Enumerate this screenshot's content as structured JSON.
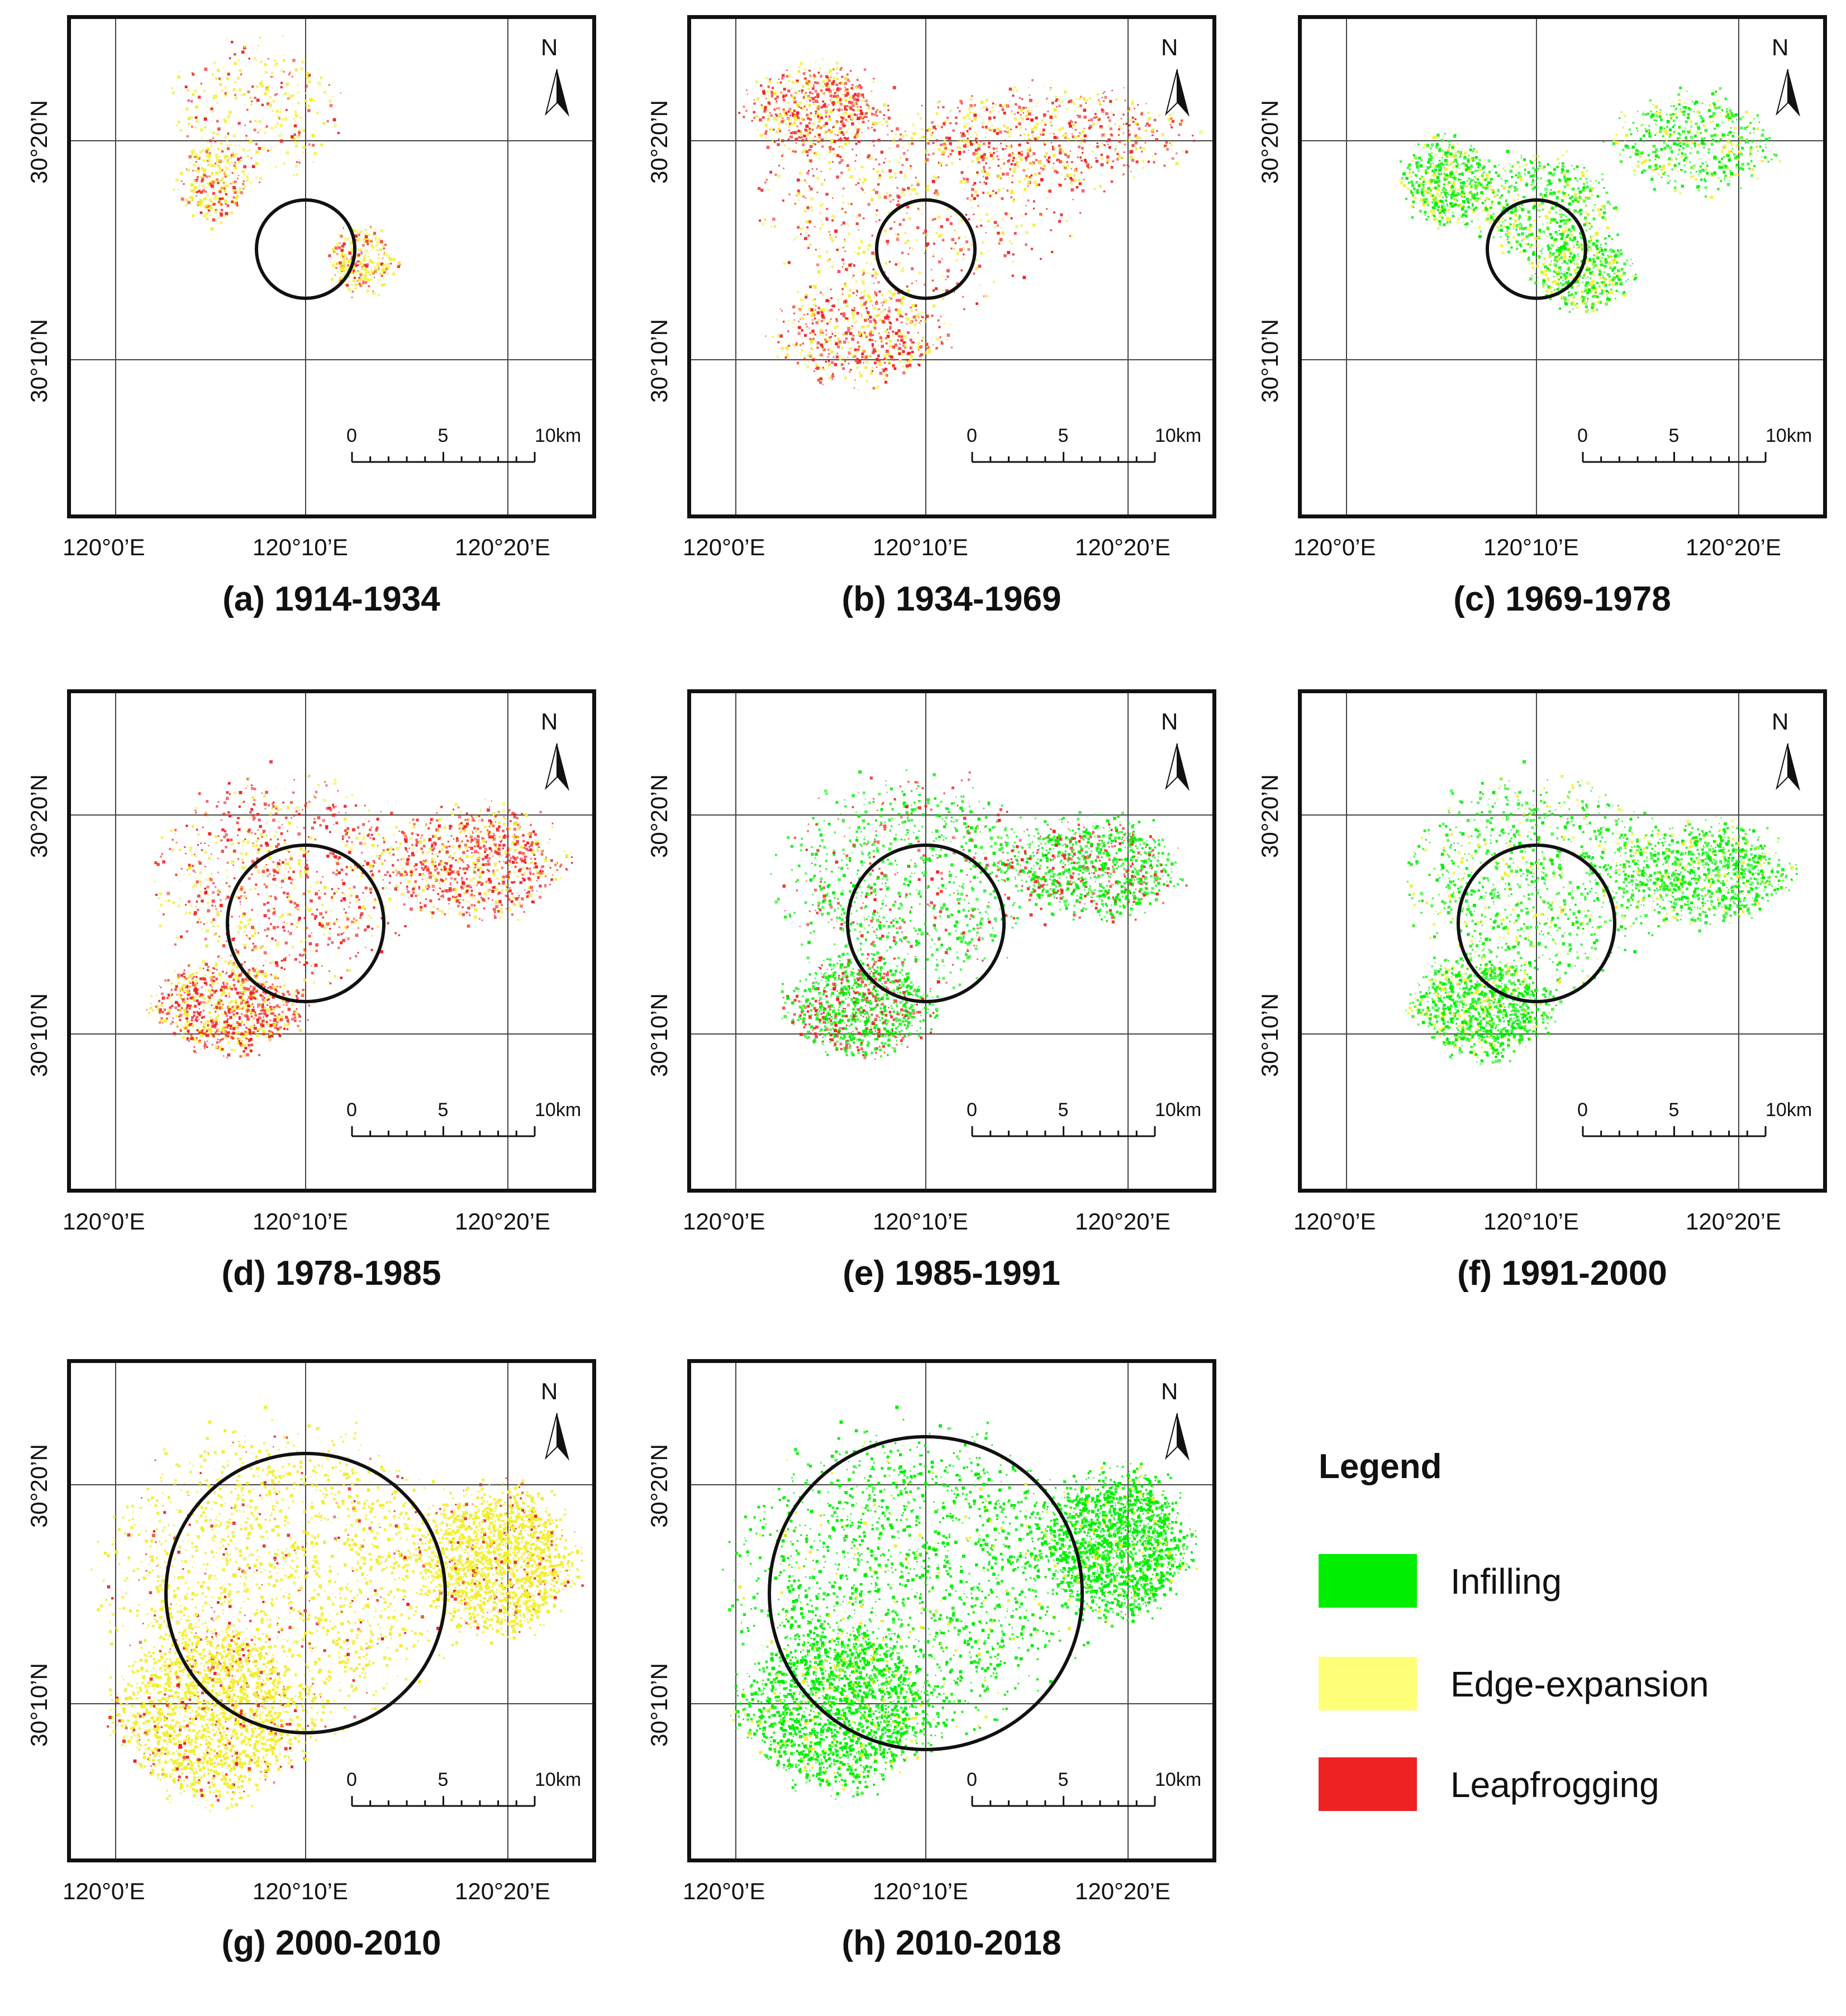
{
  "panels": [
    {
      "id": "a",
      "caption": "(a) 1914-1934",
      "dominant": "leapfrogging",
      "secondary": "edge-expansion",
      "circle_radius_km": 2.5
    },
    {
      "id": "b",
      "caption": "(b) 1934-1969",
      "dominant": "leapfrogging",
      "secondary": "edge-expansion",
      "circle_radius_km": 2.5
    },
    {
      "id": "c",
      "caption": "(c) 1969-1978",
      "dominant": "infilling",
      "secondary": "edge-expansion",
      "circle_radius_km": 2.5
    },
    {
      "id": "d",
      "caption": "(d) 1978-1985",
      "dominant": "leapfrogging",
      "secondary": "edge-expansion",
      "circle_radius_km": 4
    },
    {
      "id": "e",
      "caption": "(e) 1985-1991",
      "dominant": "infilling",
      "secondary": "leapfrogging",
      "circle_radius_km": 4
    },
    {
      "id": "f",
      "caption": "(f) 1991-2000",
      "dominant": "infilling",
      "secondary": "edge-expansion",
      "circle_radius_km": 4
    },
    {
      "id": "g",
      "caption": "(g) 2000-2010",
      "dominant": "edge-expansion",
      "secondary": "leapfrogging",
      "circle_radius_km": 7
    },
    {
      "id": "h",
      "caption": "(h) 2010-2018",
      "dominant": "infilling",
      "secondary": "edge-expansion",
      "circle_radius_km": 7
    }
  ],
  "axes": {
    "lon_labels": [
      "120°0’E",
      "120°10’E",
      "120°20’E"
    ],
    "lat_labels": [
      "30°20’N",
      "30°10’N"
    ]
  },
  "north_arrow": {
    "label": "N"
  },
  "scale_bar": {
    "labels": [
      "0",
      "5",
      "10km"
    ]
  },
  "legend": {
    "title": "Legend",
    "items": [
      {
        "label": "Infilling",
        "color": "#00ee00"
      },
      {
        "label": "Edge-expansion",
        "color": "#ffff77"
      },
      {
        "label": "Leapfrogging",
        "color": "#ee2222"
      }
    ]
  },
  "colors": {
    "infilling": "#00ee00",
    "edge-expansion": "#f2ee2a",
    "leapfrogging": "#ee2222",
    "frame": "#111111",
    "graticule": "#444444"
  }
}
